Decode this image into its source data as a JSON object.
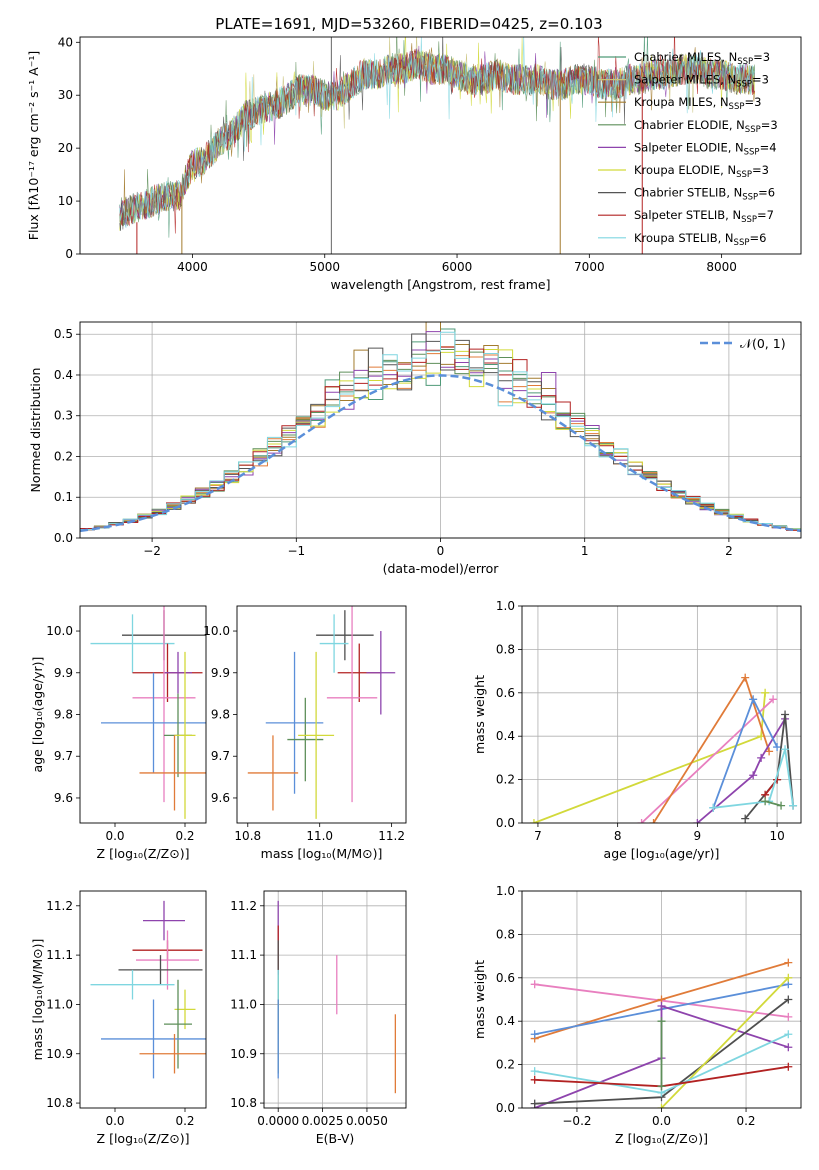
{
  "chart_data": [
    {
      "type": "line",
      "title": "PLATE=1691, MJD=53260, FIBERID=0425, z=0.103",
      "xlabel": "wavelength [Angstrom, rest frame]",
      "ylabel": "Flux [fλ10⁻¹⁷ erg cm⁻² s⁻¹ A⁻¹]",
      "xlim": [
        3150,
        8600
      ],
      "ylim": [
        0,
        41
      ],
      "xticks": [
        "4000",
        "5000",
        "6000",
        "7000",
        "8000"
      ],
      "yticks": [
        "0",
        "10",
        "20",
        "30",
        "40"
      ],
      "x": [
        3450,
        3500,
        3600,
        3700,
        3800,
        3900,
        4000,
        4100,
        4200,
        4300,
        4400,
        4500,
        4600,
        4700,
        4800,
        4900,
        5000,
        5100,
        5200,
        5300,
        5400,
        5500,
        5600,
        5700,
        5800,
        5900,
        6000,
        6100,
        6200,
        6300,
        6400,
        6500,
        6600,
        6700,
        6800,
        6900,
        7000,
        7100,
        7200,
        7300,
        7400,
        7500,
        7600,
        7700,
        7800,
        7900,
        8000,
        8100,
        8200
      ],
      "continuum": [
        7,
        8,
        9,
        10,
        11,
        11,
        17,
        18,
        21,
        23,
        26,
        27,
        28,
        29,
        31,
        31,
        30,
        30,
        32,
        34,
        34,
        35,
        35,
        36,
        35,
        35,
        34,
        33,
        33,
        34,
        33,
        33,
        33,
        32,
        32,
        33,
        33,
        32,
        32,
        33,
        33,
        34,
        34,
        35,
        35,
        34,
        34,
        33,
        33
      ],
      "legend_position": "upper right",
      "series": [
        {
          "name": "Chabrier MILES, N",
          "sub": "SSP",
          "suffix": "=3",
          "color": "#4f9a78"
        },
        {
          "name": "Salpeter MILES, N",
          "sub": "SSP",
          "suffix": "=3",
          "color": "#c9c27a"
        },
        {
          "name": "Kroupa MILES, N",
          "sub": "SSP",
          "suffix": "=3",
          "color": "#a37b2e"
        },
        {
          "name": "Chabrier ELODIE, N",
          "sub": "SSP",
          "suffix": "=3",
          "color": "#5e8f5a"
        },
        {
          "name": "Salpeter ELODIE, N",
          "sub": "SSP",
          "suffix": "=4",
          "color": "#8e44ad"
        },
        {
          "name": "Kroupa ELODIE, N",
          "sub": "SSP",
          "suffix": "=3",
          "color": "#d2d93a"
        },
        {
          "name": "Chabrier STELIB, N",
          "sub": "SSP",
          "suffix": "=6",
          "color": "#555555"
        },
        {
          "name": "Salpeter STELIB, N",
          "sub": "SSP",
          "suffix": "=7",
          "color": "#b22222"
        },
        {
          "name": "Kroupa STELIB, N",
          "sub": "SSP",
          "suffix": "=6",
          "color": "#7fd6e0"
        }
      ]
    },
    {
      "type": "bar",
      "xlabel": "(data-model)/error",
      "ylabel": "Normed distribution",
      "xlim": [
        -2.5,
        2.5
      ],
      "ylim": [
        0,
        0.53
      ],
      "xticks": [
        "−2",
        "−1",
        "0",
        "1",
        "2"
      ],
      "yticks": [
        "0.0",
        "0.1",
        "0.2",
        "0.3",
        "0.4",
        "0.5"
      ],
      "grid": true,
      "legend_position": "upper right",
      "legend": "𝒩(0, 1)",
      "bin_width": 0.1,
      "colors": [
        "#4f9a78",
        "#e07b39",
        "#a37b2e",
        "#5e8f5a",
        "#8e44ad",
        "#d2d93a",
        "#555555",
        "#b22222",
        "#7fd6e0"
      ]
    },
    {
      "type": "scatter",
      "xlabel": "Z [log₁₀(Z/Z⊙)]",
      "ylabel": "age  [log₁₀(age/yr)]",
      "xlim": [
        -0.1,
        0.26
      ],
      "ylim": [
        9.54,
        10.06
      ],
      "xticks": [
        "0.0",
        "0.2"
      ],
      "yticks": [
        "9.6",
        "9.7",
        "9.8",
        "9.9",
        "10.0"
      ],
      "points": [
        {
          "x": 0.14,
          "y": 9.99,
          "xerr": 0.12,
          "yerr": 0.06,
          "color": "#4f4f4f"
        },
        {
          "x": 0.05,
          "y": 9.97,
          "xerr": 0.12,
          "yerr": 0.07,
          "color": "#7fd6e0"
        },
        {
          "x": 0.15,
          "y": 9.9,
          "xerr": 0.1,
          "yerr": 0.07,
          "color": "#b22222"
        },
        {
          "x": 0.18,
          "y": 9.9,
          "xerr": 0.04,
          "yerr": 0.05,
          "color": "#8e44ad"
        },
        {
          "x": 0.14,
          "y": 9.84,
          "xerr": 0.09,
          "yerr": 0.25,
          "color": "#e87fbf"
        },
        {
          "x": 0.11,
          "y": 9.78,
          "xerr": 0.15,
          "yerr": 0.12,
          "color": "#5b8fd9"
        },
        {
          "x": 0.18,
          "y": 9.75,
          "xerr": 0.04,
          "yerr": 0.1,
          "color": "#5e8f5a"
        },
        {
          "x": 0.2,
          "y": 9.75,
          "xerr": 0.03,
          "yerr": 0.2,
          "color": "#d2d93a"
        },
        {
          "x": 0.17,
          "y": 9.66,
          "xerr": 0.1,
          "yerr": 0.09,
          "color": "#e07b39"
        }
      ]
    },
    {
      "type": "scatter",
      "xlabel": "mass [log₁₀(M/M⊙)]",
      "ylabel": "",
      "xlim": [
        10.77,
        11.24
      ],
      "ylim": [
        9.54,
        10.06
      ],
      "xticks": [
        "10.8",
        "11.0",
        "11.2"
      ],
      "yticks": [
        "9.6",
        "9.7",
        "9.8",
        "9.9",
        "10.0"
      ],
      "points": [
        {
          "x": 11.07,
          "y": 9.99,
          "xerr": 0.08,
          "yerr": 0.06,
          "color": "#4f4f4f"
        },
        {
          "x": 11.04,
          "y": 9.97,
          "xerr": 0.04,
          "yerr": 0.07,
          "color": "#7fd6e0"
        },
        {
          "x": 11.11,
          "y": 9.9,
          "xerr": 0.06,
          "yerr": 0.07,
          "color": "#b22222"
        },
        {
          "x": 11.17,
          "y": 9.9,
          "xerr": 0.04,
          "yerr": 0.1,
          "color": "#8e44ad"
        },
        {
          "x": 11.09,
          "y": 9.84,
          "xerr": 0.07,
          "yerr": 0.25,
          "color": "#e87fbf"
        },
        {
          "x": 10.93,
          "y": 9.78,
          "xerr": 0.08,
          "yerr": 0.17,
          "color": "#5b8fd9"
        },
        {
          "x": 10.96,
          "y": 9.74,
          "xerr": 0.05,
          "yerr": 0.1,
          "color": "#5e8f5a"
        },
        {
          "x": 10.99,
          "y": 9.75,
          "xerr": 0.05,
          "yerr": 0.2,
          "color": "#d2d93a"
        },
        {
          "x": 10.87,
          "y": 9.66,
          "xerr": 0.07,
          "yerr": 0.09,
          "color": "#e07b39"
        }
      ]
    },
    {
      "type": "line",
      "xlabel": "age  [log₁₀(age/yr)]",
      "ylabel": "mass weight",
      "xlim": [
        6.8,
        10.3
      ],
      "ylim": [
        0,
        1
      ],
      "xticks": [
        "7",
        "8",
        "9",
        "10"
      ],
      "yticks": [
        "0.0",
        "0.2",
        "0.4",
        "0.6",
        "0.8",
        "1.0"
      ],
      "grid": true,
      "series": [
        {
          "color": "#d2d93a",
          "points": [
            [
              6.95,
              0.0
            ],
            [
              9.8,
              0.4
            ],
            [
              9.85,
              0.6
            ]
          ]
        },
        {
          "color": "#e87fbf",
          "points": [
            [
              8.3,
              0.0
            ],
            [
              9.95,
              0.57
            ]
          ]
        },
        {
          "color": "#e07b39",
          "points": [
            [
              8.45,
              0.0
            ],
            [
              9.6,
              0.67
            ],
            [
              9.9,
              0.33
            ]
          ]
        },
        {
          "color": "#8e44ad",
          "points": [
            [
              9.0,
              0.0
            ],
            [
              9.7,
              0.22
            ],
            [
              9.8,
              0.3
            ],
            [
              10.1,
              0.48
            ]
          ]
        },
        {
          "color": "#5b8fd9",
          "points": [
            [
              9.2,
              0.07
            ],
            [
              9.7,
              0.57
            ],
            [
              10.0,
              0.35
            ]
          ]
        },
        {
          "color": "#4f4f4f",
          "points": [
            [
              9.6,
              0.02
            ],
            [
              10.0,
              0.2
            ],
            [
              10.1,
              0.5
            ],
            [
              10.2,
              0.08
            ]
          ]
        },
        {
          "color": "#b22222",
          "points": [
            [
              9.85,
              0.13
            ],
            [
              10.0,
              0.2
            ]
          ]
        },
        {
          "color": "#7fd6e0",
          "points": [
            [
              9.2,
              0.07
            ],
            [
              9.9,
              0.1
            ],
            [
              10.1,
              0.34
            ],
            [
              10.2,
              0.08
            ]
          ]
        },
        {
          "color": "#5e8f5a",
          "points": [
            [
              9.85,
              0.1
            ],
            [
              10.05,
              0.08
            ]
          ]
        }
      ]
    },
    {
      "type": "scatter",
      "xlabel": "Z [log₁₀(Z/Z⊙)]",
      "ylabel": "mass [log₁₀(M/M⊙)]",
      "xlim": [
        -0.1,
        0.26
      ],
      "ylim": [
        10.79,
        11.23
      ],
      "xticks": [
        "0.0",
        "0.2"
      ],
      "yticks": [
        "10.8",
        "10.9",
        "11.0",
        "11.1",
        "11.2"
      ],
      "points": [
        {
          "x": 0.14,
          "y": 11.17,
          "xerr": 0.06,
          "yerr": 0.04,
          "color": "#8e44ad"
        },
        {
          "x": 0.15,
          "y": 11.11,
          "xerr": 0.1,
          "yerr": 0.02,
          "color": "#b22222"
        },
        {
          "x": 0.15,
          "y": 11.09,
          "xerr": 0.09,
          "yerr": 0.06,
          "color": "#e87fbf"
        },
        {
          "x": 0.13,
          "y": 11.07,
          "xerr": 0.12,
          "yerr": 0.03,
          "color": "#4f4f4f"
        },
        {
          "x": 0.05,
          "y": 11.04,
          "xerr": 0.12,
          "yerr": 0.03,
          "color": "#7fd6e0"
        },
        {
          "x": 0.2,
          "y": 10.99,
          "xerr": 0.03,
          "yerr": 0.04,
          "color": "#d2d93a"
        },
        {
          "x": 0.18,
          "y": 10.96,
          "xerr": 0.04,
          "yerr": 0.09,
          "color": "#5e8f5a"
        },
        {
          "x": 0.11,
          "y": 10.93,
          "xerr": 0.15,
          "yerr": 0.08,
          "color": "#5b8fd9"
        },
        {
          "x": 0.17,
          "y": 10.9,
          "xerr": 0.1,
          "yerr": 0.04,
          "color": "#e07b39"
        }
      ]
    },
    {
      "type": "scatter",
      "xlabel": "E(B-V)",
      "ylabel": "",
      "xlim": [
        -0.0008,
        0.0072
      ],
      "ylim": [
        10.79,
        11.23
      ],
      "xticks": [
        "0.0000",
        "0.0025",
        "0.0050"
      ],
      "yticks": [
        "10.8",
        "10.9",
        "11.0",
        "11.1",
        "11.2"
      ],
      "grid": true,
      "points": [
        {
          "x": 0.0,
          "y": 11.17,
          "yerr": 0.04,
          "color": "#8e44ad"
        },
        {
          "x": 0.0,
          "y": 11.1,
          "yerr": 0.06,
          "color": "#b22222"
        },
        {
          "x": 0.0,
          "y": 11.07,
          "yerr": 0.06,
          "color": "#4f4f4f"
        },
        {
          "x": 0.0,
          "y": 11.0,
          "yerr": 0.06,
          "color": "#d2d93a"
        },
        {
          "x": 0.0,
          "y": 10.96,
          "yerr": 0.1,
          "color": "#5e8f5a"
        },
        {
          "x": 0.0,
          "y": 10.93,
          "yerr": 0.08,
          "color": "#5b8fd9"
        },
        {
          "x": 0.0,
          "y": 11.04,
          "yerr": 0.03,
          "color": "#7fd6e0"
        },
        {
          "x": 0.0033,
          "y": 11.04,
          "yerr": 0.06,
          "color": "#e87fbf"
        },
        {
          "x": 0.0066,
          "y": 10.9,
          "yerr": 0.08,
          "color": "#e07b39"
        }
      ]
    },
    {
      "type": "line",
      "xlabel": "Z [log₁₀(Z/Z⊙)]",
      "ylabel": "mass weight",
      "xlim": [
        -0.33,
        0.33
      ],
      "ylim": [
        0,
        1
      ],
      "xticks": [
        "−0.2",
        "0.0",
        "0.2"
      ],
      "yticks": [
        "0.0",
        "0.2",
        "0.4",
        "0.6",
        "0.8",
        "1.0"
      ],
      "grid": true,
      "series": [
        {
          "color": "#e87fbf",
          "points": [
            [
              -0.3,
              0.57
            ],
            [
              0.3,
              0.42
            ]
          ]
        },
        {
          "color": "#e07b39",
          "points": [
            [
              -0.3,
              0.32
            ],
            [
              0.0,
              0.5
            ],
            [
              0.3,
              0.67
            ]
          ]
        },
        {
          "color": "#5b8fd9",
          "points": [
            [
              -0.3,
              0.34
            ],
            [
              0.3,
              0.57
            ]
          ]
        },
        {
          "color": "#8e44ad",
          "points": [
            [
              -0.3,
              0.0
            ],
            [
              0.0,
              0.23
            ],
            [
              0.0,
              0.47
            ],
            [
              0.3,
              0.28
            ]
          ]
        },
        {
          "color": "#4f4f4f",
          "points": [
            [
              -0.3,
              0.02
            ],
            [
              0.0,
              0.05
            ],
            [
              0.3,
              0.5
            ]
          ]
        },
        {
          "color": "#d2d93a",
          "points": [
            [
              0.0,
              0.0
            ],
            [
              0.3,
              0.6
            ]
          ]
        },
        {
          "color": "#7fd6e0",
          "points": [
            [
              -0.3,
              0.17
            ],
            [
              0.0,
              0.07
            ],
            [
              0.3,
              0.34
            ]
          ]
        },
        {
          "color": "#b22222",
          "points": [
            [
              -0.3,
              0.13
            ],
            [
              0.0,
              0.1
            ],
            [
              0.3,
              0.19
            ]
          ]
        },
        {
          "color": "#5e8f5a",
          "points": [
            [
              0.0,
              0.4
            ],
            [
              0.0,
              0.1
            ]
          ]
        }
      ]
    }
  ]
}
